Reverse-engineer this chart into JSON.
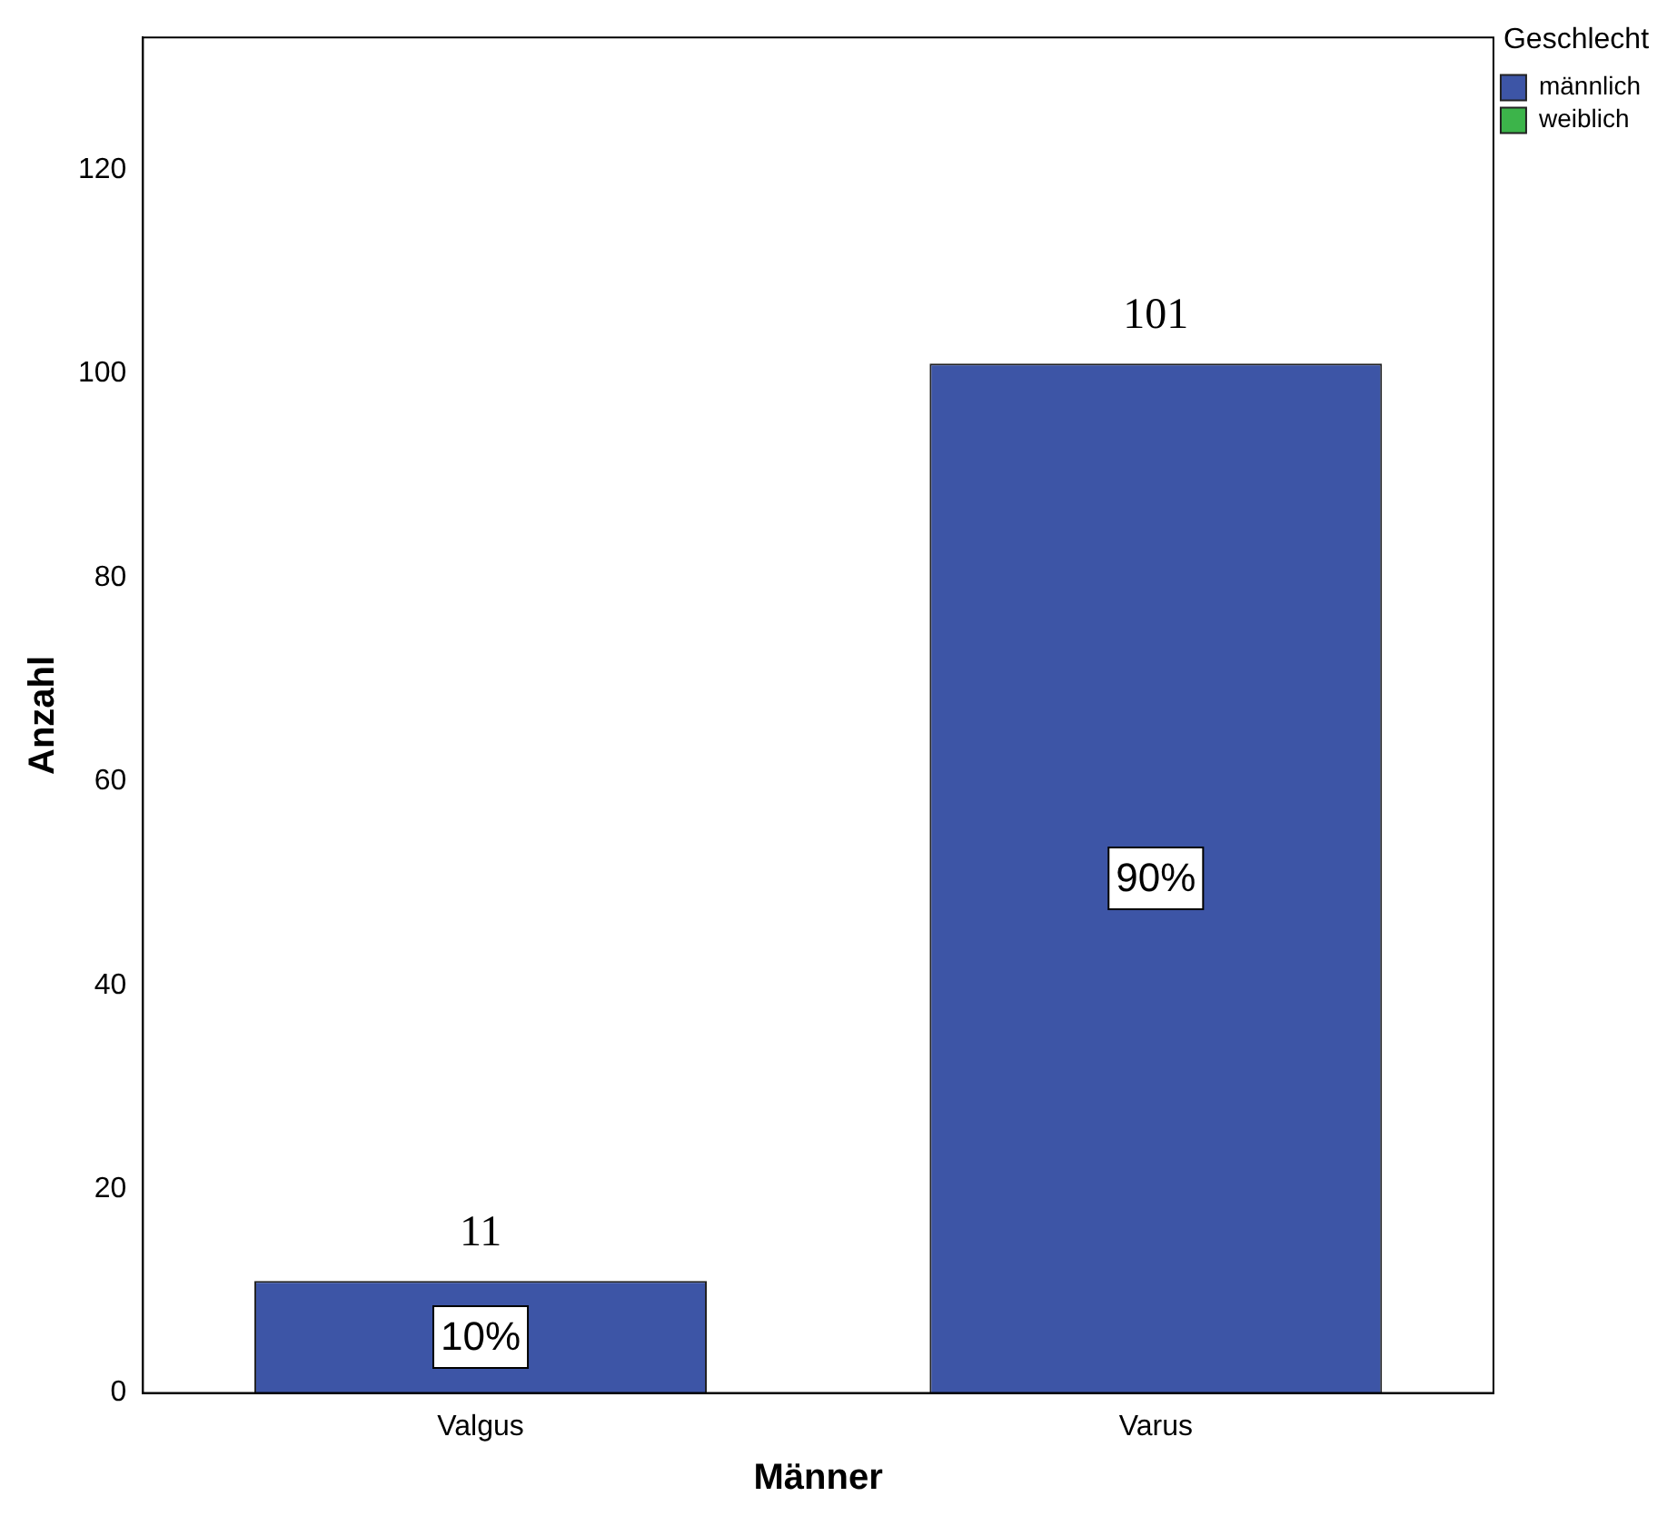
{
  "chart_data": {
    "type": "bar",
    "xlabel": "Männer",
    "ylabel": "Anzahl",
    "legend_title": "Geschlecht",
    "legend": "top right",
    "categories": [
      "Valgus",
      "Varus"
    ],
    "series": [
      {
        "name": "männlich",
        "color": "#3d55a6",
        "values": [
          11,
          101
        ]
      },
      {
        "name": "weiblich",
        "color": "#3cb44a",
        "values": [
          null,
          null
        ]
      }
    ],
    "ylim": [
      0,
      133
    ],
    "yticks": [
      0,
      20,
      40,
      60,
      80,
      100,
      120
    ],
    "grid": false,
    "data_labels": true,
    "annotations": [
      "10%",
      "90%"
    ]
  }
}
